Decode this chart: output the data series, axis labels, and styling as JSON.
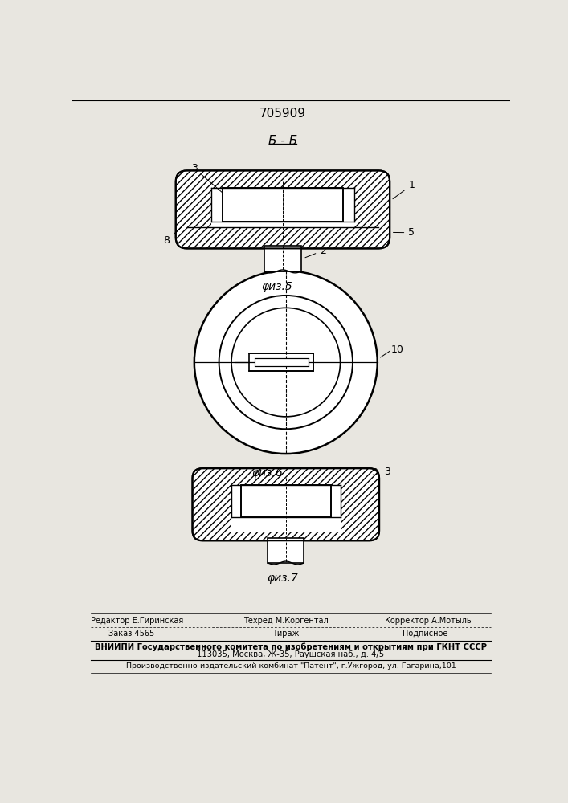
{
  "patent_number": "705909",
  "section_label": "Б - Б",
  "fig5_label": "φиз.5",
  "fig6_label": "φиз.6",
  "fig7_label": "φиз.7",
  "label_1": "1",
  "label_2": "2",
  "label_3": "3",
  "label_5": "5",
  "label_8": "8",
  "label_10": "10",
  "footer_line1_col1": "Редактор Е.Гиринская",
  "footer_line1_col2": "Техред М.Коргентал",
  "footer_line1_col3": "Корректор А.Мотыль",
  "footer_line2_col1": "Заказ 4565",
  "footer_line2_col2": "Тираж",
  "footer_line2_col3": "Подписное",
  "footer_line3": "ВНИИПИ Государственного комитета по изобретениям и открытиям при ГКНТ СССР",
  "footer_line4": "113035, Москва, Ж-35, Раушская наб., д. 4/5",
  "footer_line5": "Производственно-издательский комбинат \"Патент\", г.Ужгород, ул. Гагарина,101",
  "bg_color": "#e8e6e0"
}
